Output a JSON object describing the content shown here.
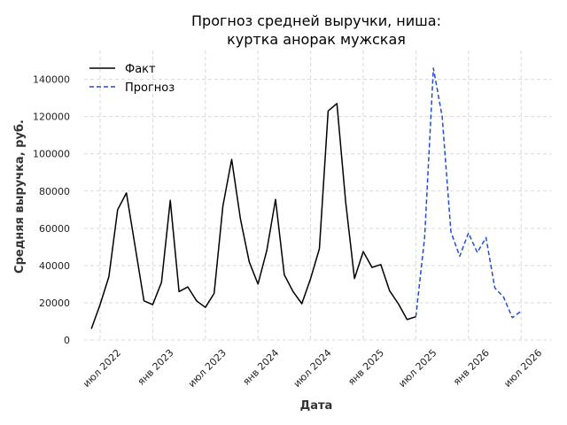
{
  "chart_data": {
    "type": "line",
    "title_lines": [
      "Прогноз средней выручки, ниша:",
      "куртка анорак мужская"
    ],
    "xlabel": "Дата",
    "ylabel": "Средняя выручка, руб.",
    "x_ticks": [
      "июл 2022",
      "янв 2023",
      "июл 2023",
      "янв 2024",
      "июл 2024",
      "янв 2025",
      "июл 2025",
      "янв 2026",
      "июл 2026"
    ],
    "y_ticks": [
      "0",
      "20000",
      "40000",
      "60000",
      "80000",
      "100000",
      "120000",
      "140000"
    ],
    "ylim": [
      0,
      150000
    ],
    "grid": true,
    "legend_position": "top-left",
    "series": [
      {
        "name": "Факт",
        "color": "#000000",
        "style": "solid",
        "points": [
          [
            "2022-06",
            6000
          ],
          [
            "2022-07",
            19000
          ],
          [
            "2022-08",
            34000
          ],
          [
            "2022-09",
            70000
          ],
          [
            "2022-10",
            79000
          ],
          [
            "2022-11",
            50000
          ],
          [
            "2022-12",
            21000
          ],
          [
            "2023-01",
            19000
          ],
          [
            "2023-02",
            31000
          ],
          [
            "2023-03",
            75000
          ],
          [
            "2023-04",
            26000
          ],
          [
            "2023-05",
            28500
          ],
          [
            "2023-06",
            21000
          ],
          [
            "2023-07",
            17500
          ],
          [
            "2023-08",
            25000
          ],
          [
            "2023-09",
            72000
          ],
          [
            "2023-10",
            97000
          ],
          [
            "2023-11",
            65000
          ],
          [
            "2023-12",
            42000
          ],
          [
            "2024-01",
            30000
          ],
          [
            "2024-02",
            48000
          ],
          [
            "2024-03",
            75500
          ],
          [
            "2024-04",
            35000
          ],
          [
            "2024-05",
            26000
          ],
          [
            "2024-06",
            19500
          ],
          [
            "2024-07",
            33000
          ],
          [
            "2024-08",
            49000
          ],
          [
            "2024-09",
            123000
          ],
          [
            "2024-10",
            127000
          ],
          [
            "2024-11",
            74000
          ],
          [
            "2024-12",
            33000
          ],
          [
            "2025-01",
            47500
          ],
          [
            "2025-02",
            39000
          ],
          [
            "2025-03",
            40500
          ],
          [
            "2025-04",
            26500
          ],
          [
            "2025-05",
            19500
          ],
          [
            "2025-06",
            11000
          ],
          [
            "2025-07",
            12500
          ]
        ]
      },
      {
        "name": "Прогноз",
        "color": "#1f4fd1",
        "style": "dashed",
        "points": [
          [
            "2025-07",
            12500
          ],
          [
            "2025-08",
            55000
          ],
          [
            "2025-09",
            146000
          ],
          [
            "2025-10",
            120000
          ],
          [
            "2025-11",
            58000
          ],
          [
            "2025-12",
            45000
          ],
          [
            "2026-01",
            57500
          ],
          [
            "2026-02",
            47000
          ],
          [
            "2026-03",
            55000
          ],
          [
            "2026-04",
            28000
          ],
          [
            "2026-05",
            23000
          ],
          [
            "2026-06",
            12000
          ],
          [
            "2026-07",
            15500
          ]
        ]
      }
    ]
  }
}
